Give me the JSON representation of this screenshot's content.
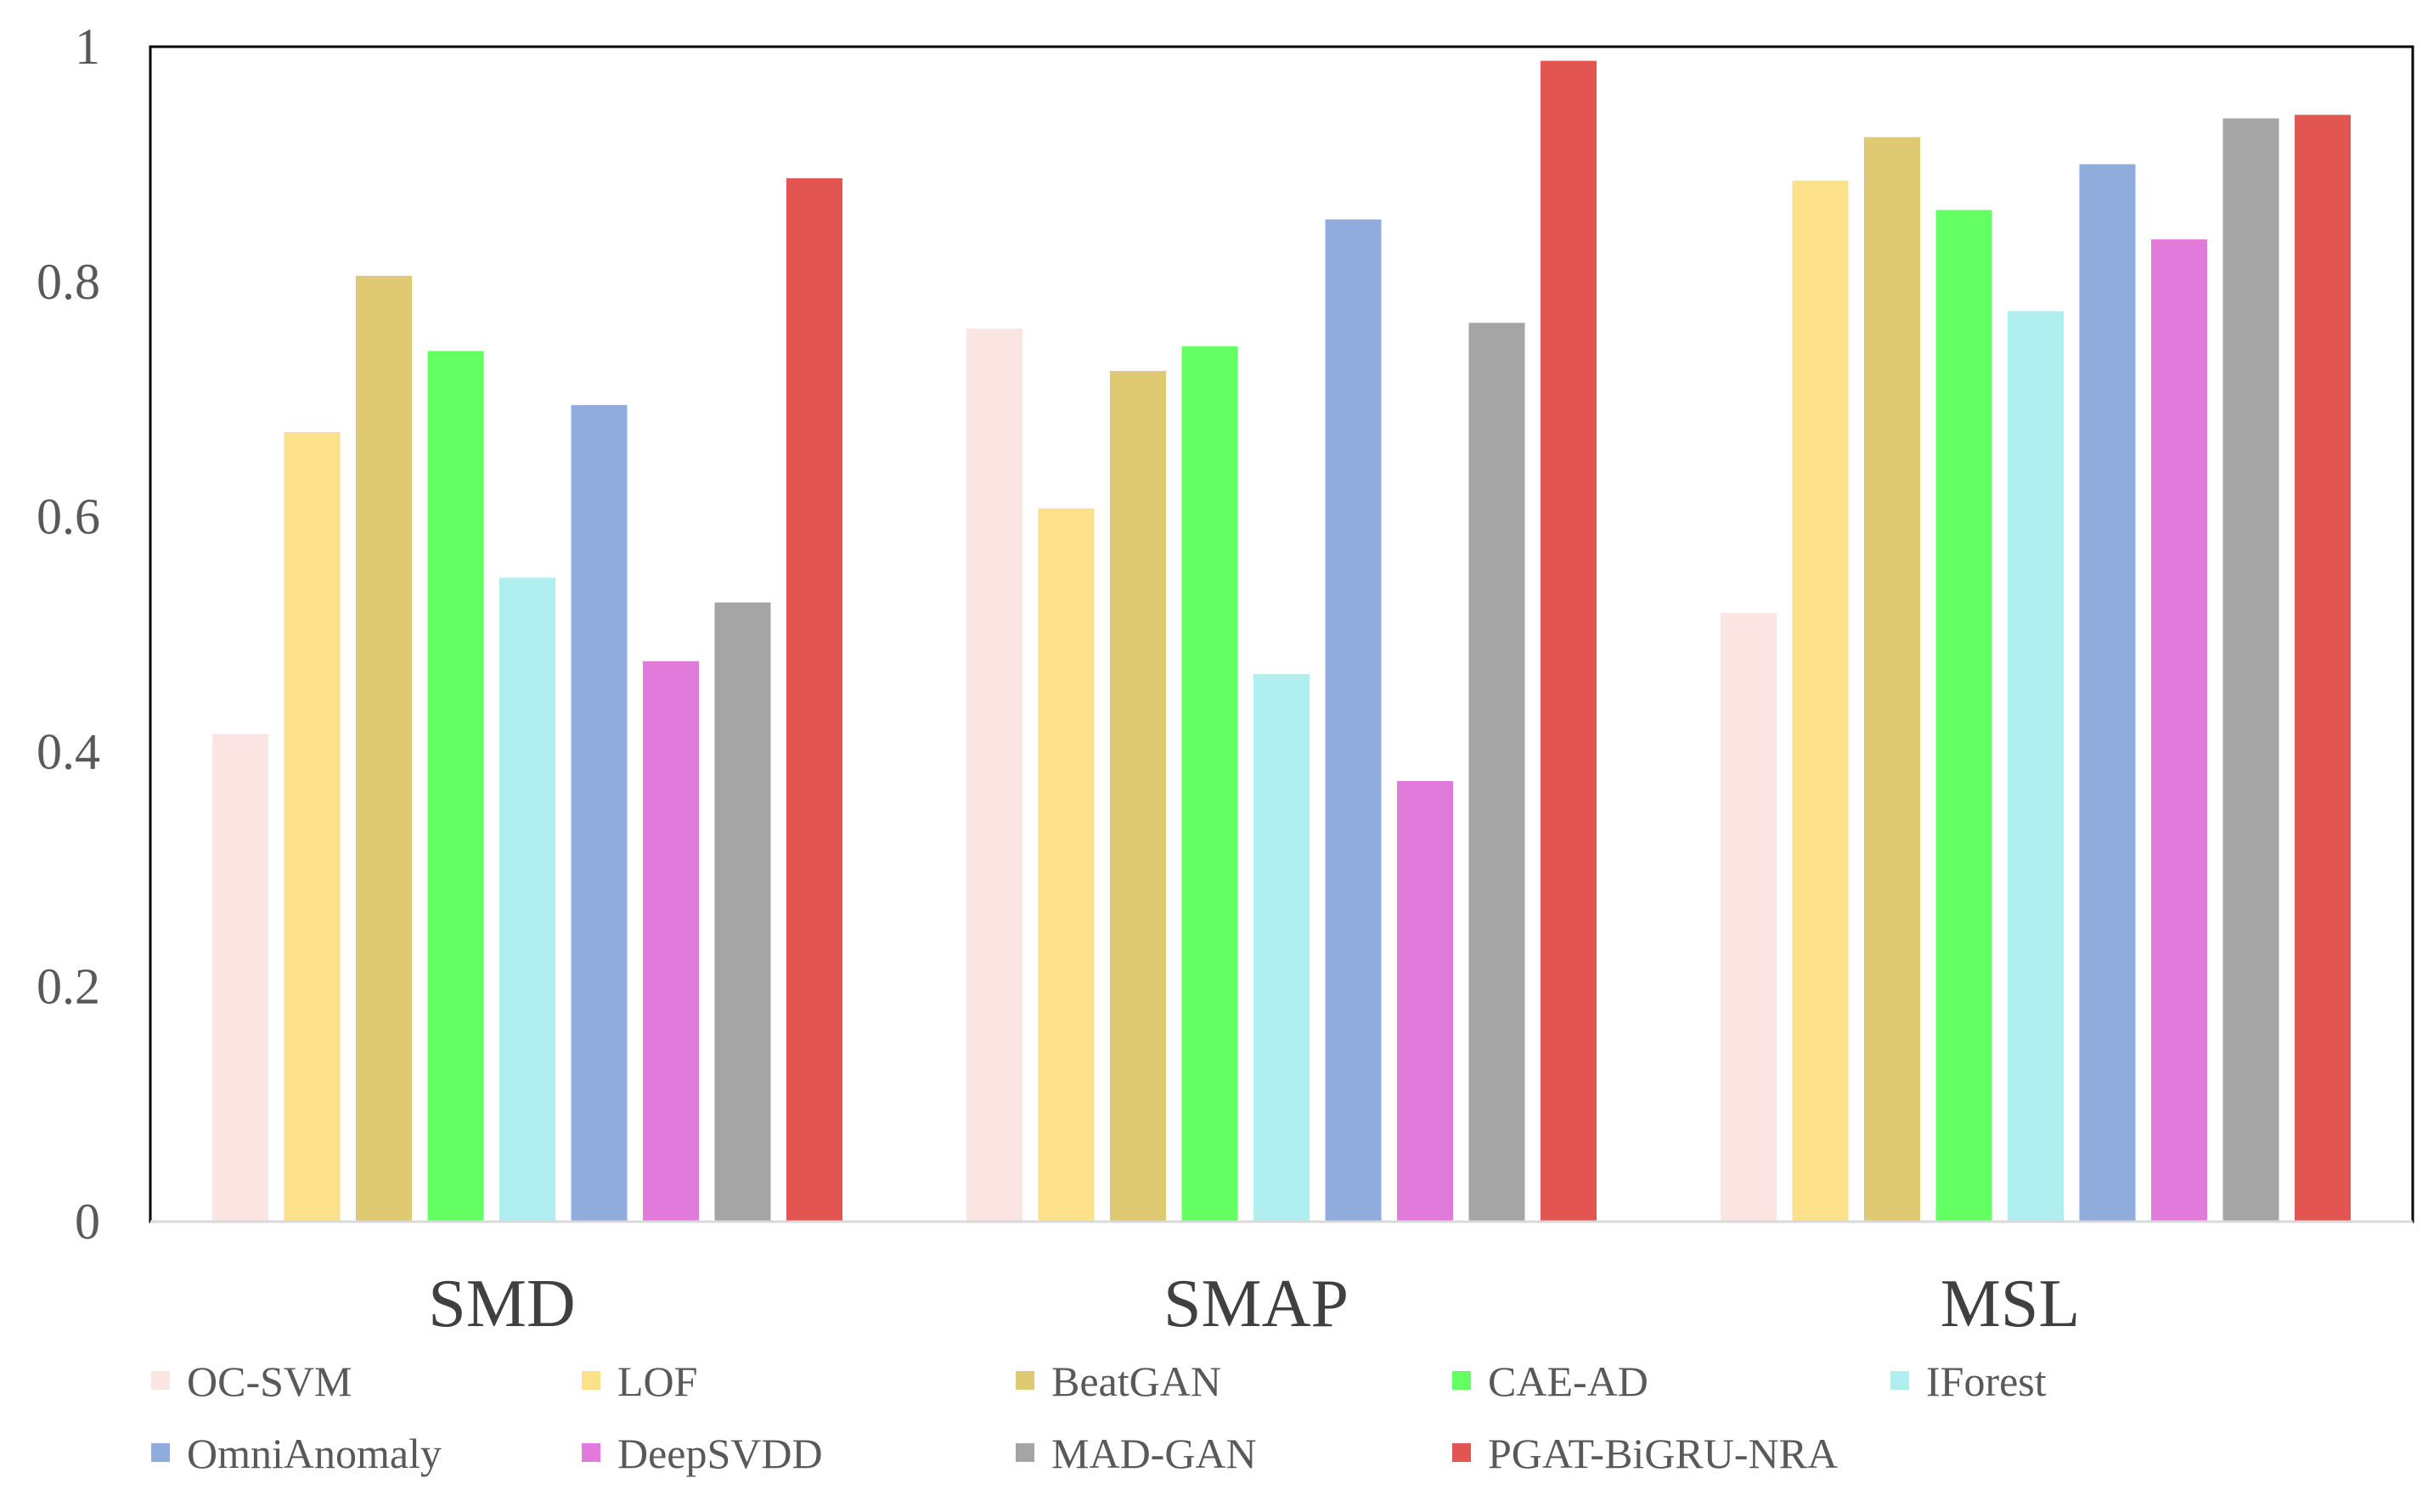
{
  "chart_data": {
    "type": "bar",
    "title": "",
    "xlabel": "",
    "ylabel": "",
    "ylim": [
      0,
      1
    ],
    "yticks": [
      {
        "value": 0,
        "label": "0"
      },
      {
        "value": 0.2,
        "label": "0.2"
      },
      {
        "value": 0.4,
        "label": "0.4"
      },
      {
        "value": 0.6,
        "label": "0.6"
      },
      {
        "value": 0.8,
        "label": "0.8"
      },
      {
        "value": 1,
        "label": "1"
      }
    ],
    "grid": false,
    "legend_position": "bottom",
    "categories": [
      "SMD",
      "SMAP",
      "MSL"
    ],
    "series": [
      {
        "name": "OC-SVM",
        "color": "#FBE5E3",
        "values": [
          0.415,
          0.76,
          0.518
        ]
      },
      {
        "name": "LOF",
        "color": "#FCE08A",
        "values": [
          0.672,
          0.607,
          0.886
        ]
      },
      {
        "name": "BeatGAN",
        "color": "#DFC973",
        "values": [
          0.805,
          0.724,
          0.923
        ]
      },
      {
        "name": "CAE-AD",
        "color": "#63FF63",
        "values": [
          0.741,
          0.745,
          0.861
        ]
      },
      {
        "name": "IForest",
        "color": "#B0EEF0",
        "values": [
          0.548,
          0.466,
          0.775
        ]
      },
      {
        "name": "OmniAnomaly",
        "color": "#8FACDD",
        "values": [
          0.695,
          0.853,
          0.9
        ]
      },
      {
        "name": "DeepSVDD",
        "color": "#E27ADB",
        "values": [
          0.477,
          0.375,
          0.836
        ]
      },
      {
        "name": "MAD-GAN",
        "color": "#A5A5A5",
        "values": [
          0.527,
          0.765,
          0.939
        ]
      },
      {
        "name": "PGAT-BiGRU-NRA",
        "color": "#E25550",
        "values": [
          0.888,
          0.988,
          0.942
        ]
      }
    ]
  }
}
